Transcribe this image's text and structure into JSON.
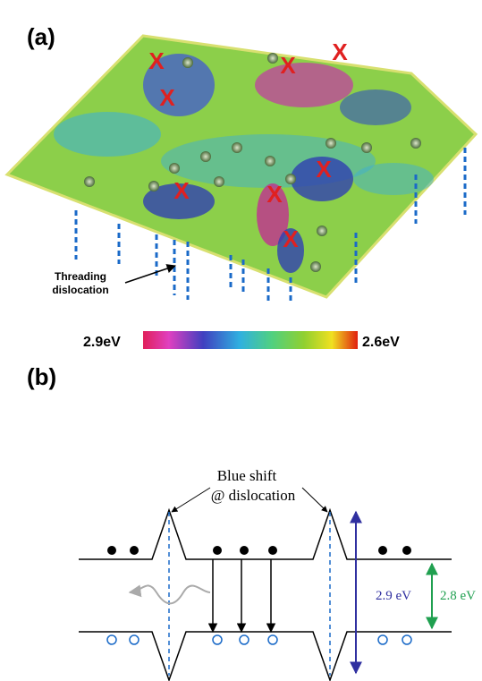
{
  "panel_a": {
    "label": "(a)",
    "markers": [
      "X",
      "X",
      "X",
      "X",
      "X",
      "X",
      "X",
      "X"
    ],
    "annotation": [
      "Threading",
      "dislocation"
    ],
    "colorbar": {
      "left": "2.9eV",
      "right": "2.6eV"
    }
  },
  "panel_b": {
    "label": "(b)",
    "annotation": [
      "Blue shift",
      "@ dislocation"
    ],
    "gap_large": "2.9 eV",
    "gap_small": "2.8 eV"
  }
}
